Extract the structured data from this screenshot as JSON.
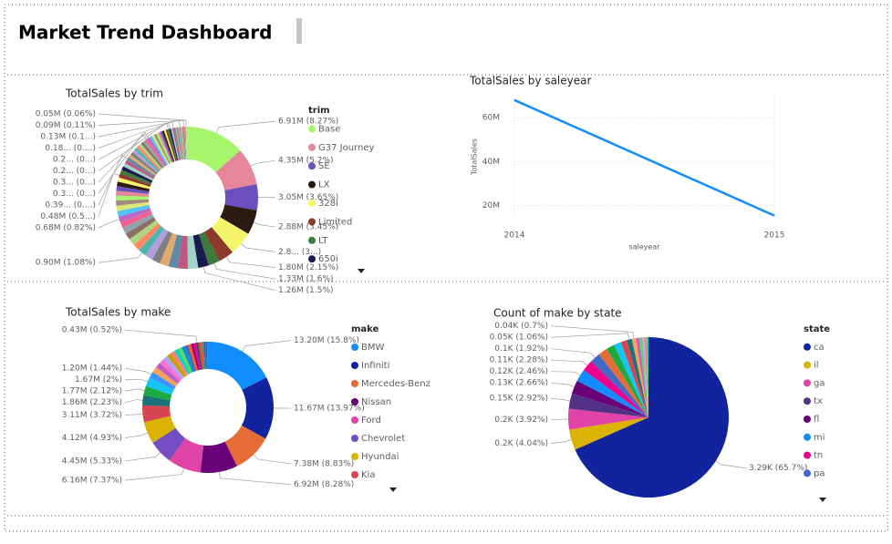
{
  "header": {
    "title": "Market Trend Dashboard"
  },
  "chart_data": [
    {
      "type": "donut",
      "title": "TotalSales by trim",
      "legend_title": "trim",
      "categories": [
        "Base",
        "G37 Journey",
        "SE",
        "LX",
        "328i",
        "Limited",
        "LT",
        "650i",
        null,
        null,
        null,
        null,
        null,
        null,
        null,
        null,
        null,
        null,
        null,
        null,
        null,
        null,
        null,
        null,
        null,
        null,
        null,
        null,
        null,
        null,
        null,
        null,
        null,
        null,
        null,
        null,
        null,
        null,
        null,
        null,
        null,
        null,
        null,
        null,
        null,
        null,
        null,
        null,
        null,
        null,
        null,
        null,
        null,
        null,
        null,
        null,
        null,
        null,
        null,
        null,
        null,
        null,
        null,
        null,
        null,
        null,
        null,
        null,
        null,
        null,
        null,
        null,
        null
      ],
      "values": [
        6.91,
        4.35,
        3.05,
        2.88,
        2.8,
        1.8,
        1.33,
        1.26,
        1.2,
        1.15,
        1.1,
        1.05,
        1.0,
        0.95,
        0.9,
        0.86,
        0.82,
        0.78,
        0.74,
        0.71,
        0.68,
        0.65,
        0.62,
        0.6,
        0.58,
        0.56,
        0.54,
        0.52,
        0.5,
        0.48,
        0.46,
        0.44,
        0.42,
        0.4,
        0.39,
        0.38,
        0.37,
        0.36,
        0.35,
        0.34,
        0.33,
        0.32,
        0.31,
        0.3,
        0.3,
        0.29,
        0.28,
        0.27,
        0.26,
        0.25,
        0.24,
        0.23,
        0.22,
        0.21,
        0.2,
        0.2,
        0.19,
        0.18,
        0.17,
        0.16,
        0.15,
        0.14,
        0.13,
        0.12,
        0.11,
        0.1,
        0.09,
        0.08,
        0.07,
        0.06,
        0.05,
        0.04,
        0.03
      ],
      "value_labels": [
        "6.91M (8.27%)",
        "4.35M (5.2%)",
        "3.05M (3.65%)",
        "2.88M (3.45%)",
        "2.8... (3...)",
        "1.80M (2.15%)",
        "1.33M (1.6%)",
        "1.26M (1.5%)",
        null,
        null,
        null,
        null,
        null,
        null,
        "0.90M (1.08%)",
        null,
        null,
        null,
        null,
        null,
        "0.68M (0.82%)",
        null,
        null,
        null,
        null,
        null,
        null,
        null,
        null,
        "0.48M (0.5...)",
        null,
        null,
        null,
        null,
        "0.39... (0....)",
        null,
        null,
        null,
        null,
        null,
        null,
        null,
        null,
        "0.3... (0...)",
        "0.3... (0...)",
        null,
        null,
        null,
        null,
        null,
        null,
        null,
        null,
        null,
        "0.2... (0...)",
        "0.2... (0...)",
        null,
        "0.18... (0....)",
        null,
        null,
        null,
        null,
        "0.13M (0.1...)",
        null,
        null,
        null,
        "0.09M (0.11%)",
        null,
        null,
        null,
        "0.05M (0.06%)",
        null,
        null
      ],
      "colors": [
        "#a6f56b",
        "#e5869a",
        "#6b4fbf",
        "#2b1a0f",
        "#f5f56b",
        "#8b3a2b",
        "#3e7a3e",
        "#1a1a4e",
        "#9fd3c7",
        "#c05780",
        "#5d8aa8",
        "#e0a96d",
        "#7f7f7f",
        "#b39ddb",
        "#4db6ac",
        "#ff8a65",
        "#aed581",
        "#8d6e63",
        "#90a4ae",
        "#f06292",
        "#ba68c8",
        "#4fc3f7",
        "#dce775",
        "#a1887f"
      ]
    },
    {
      "type": "line",
      "title": "TotalSales by saleyear",
      "x_label": "saleyear",
      "y_label": "TotalSales",
      "x": [
        2014,
        2015
      ],
      "values": [
        68,
        15.4
      ],
      "color": "#118dff",
      "xlim": [
        2014,
        2015
      ],
      "xticks": [
        2014,
        2015
      ],
      "ylim": [
        14,
        70
      ],
      "yticks": [
        {
          "value": 20,
          "label": "20M"
        },
        {
          "value": 40,
          "label": "40M"
        },
        {
          "value": 60,
          "label": "60M"
        }
      ],
      "grid": true
    },
    {
      "type": "donut",
      "title": "TotalSales by make",
      "legend_title": "make",
      "categories": [
        "BMW",
        "Infiniti",
        "Mercedes-Benz",
        "Nissan",
        "Ford",
        "Chevrolet",
        "Hyundai",
        "Kia",
        null,
        null,
        null,
        null,
        null,
        null,
        null,
        null,
        null,
        null,
        null,
        null,
        null,
        null,
        null,
        null,
        null,
        null,
        null,
        null,
        null,
        null,
        null,
        null,
        null,
        null
      ],
      "values": [
        13.2,
        11.67,
        7.38,
        6.92,
        6.16,
        4.45,
        4.12,
        3.11,
        1.86,
        1.77,
        1.67,
        1.2,
        1.1,
        1.0,
        0.95,
        0.9,
        0.85,
        0.8,
        0.75,
        0.7,
        0.65,
        0.6,
        0.55,
        0.5,
        0.45,
        0.43,
        0.4,
        0.35,
        0.3,
        0.25,
        0.2,
        0.15,
        0.1,
        0.05
      ],
      "value_labels": [
        "13.20M (15.8%)",
        "11.67M (13.97%)",
        "7.38M (8.83%)",
        "6.92M (8.28%)",
        "6.16M (7.37%)",
        "4.45M (5.33%)",
        "4.12M (4.93%)",
        "3.11M (3.72%)",
        "1.86M (2.23%)",
        "1.77M (2.12%)",
        "1.67M (2%)",
        "1.20M (1.44%)",
        null,
        null,
        null,
        null,
        null,
        null,
        null,
        null,
        null,
        null,
        null,
        null,
        null,
        "0.43M (0.52%)",
        null,
        null,
        null,
        null,
        null,
        null,
        null,
        null
      ],
      "colors": [
        "#118dff",
        "#12239e",
        "#e66c37",
        "#6b007b",
        "#e044a7",
        "#744ec2",
        "#d9b300",
        "#d64550",
        "#197278",
        "#1aab40",
        "#15c6f4",
        "#4092ff",
        "#ffa058",
        "#be5dc9",
        "#f472d0",
        "#b5a1ff",
        "#c4a200",
        "#ff8080",
        "#00dbbc",
        "#5bd667",
        "#0091d5",
        "#4668c5",
        "#ff6300",
        "#99008a",
        "#ec008c",
        "#533285",
        "#99700a",
        "#ff4141",
        "#1f9a85",
        "#255a91"
      ]
    },
    {
      "type": "pie",
      "title": "Count of make by state",
      "legend_title": "state",
      "categories": [
        "ca",
        "il",
        "ga",
        "tx",
        "fl",
        "mi",
        "tn",
        "pa",
        null,
        null,
        null,
        null,
        null,
        null,
        null,
        null,
        null,
        null,
        null,
        null
      ],
      "values": [
        3.29,
        0.2,
        0.2,
        0.15,
        0.13,
        0.12,
        0.11,
        0.1,
        0.09,
        0.08,
        0.07,
        0.06,
        0.05,
        0.04,
        0.03,
        0.03,
        0.02,
        0.02,
        0.01,
        0.01
      ],
      "value_labels": [
        "3.29K (65.7%)",
        "0.2K (4.04%)",
        "0.2K (3.92%)",
        "0.15K (2.92%)",
        "0.13K (2.66%)",
        "0.12K (2.46%)",
        "0.11K (2.28%)",
        "0.1K (1.92%)",
        null,
        null,
        null,
        null,
        "0.05K (1.06%)",
        "0.04K (0.7%)",
        null,
        null,
        null,
        null,
        null,
        null
      ],
      "colors": [
        "#12239e",
        "#d9b300",
        "#e044a7",
        "#533285",
        "#6b007b",
        "#118dff",
        "#ec008c",
        "#4668c5",
        "#e66c37",
        "#1aab40",
        "#15c6f4",
        "#d64550",
        "#197278",
        "#ffa058",
        "#be5dc9",
        "#5bd667",
        "#b5a1ff",
        "#ff8080",
        "#c4a200",
        "#00dbbc"
      ]
    }
  ]
}
